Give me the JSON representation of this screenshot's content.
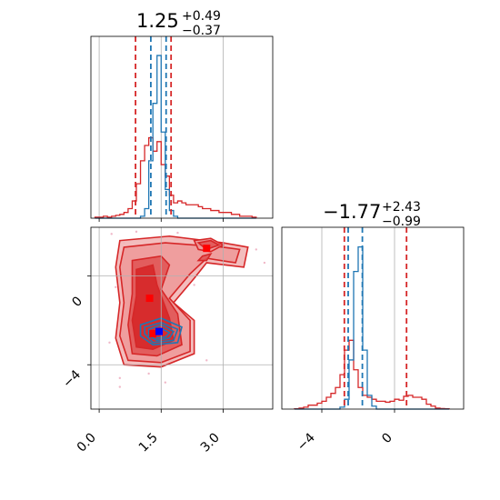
{
  "chart_data": {
    "type": "corner",
    "colors": {
      "red": "#d62728",
      "blue": "#1f77b4",
      "red_fill": "#ee9a9a",
      "grid": "#b0b0b0"
    },
    "panels": [
      {
        "id": "hist-param1",
        "type": "histogram",
        "title": {
          "main": "1.25",
          "sup": "+0.49",
          "sub": "−0.37"
        },
        "xlim": [
          -0.2,
          4.2
        ],
        "grid_x": [
          0.0,
          1.5,
          3.0
        ],
        "bin_edges": [
          -0.1,
          0.0,
          0.1,
          0.2,
          0.3,
          0.4,
          0.5,
          0.6,
          0.7,
          0.8,
          0.9,
          1.0,
          1.1,
          1.2,
          1.3,
          1.4,
          1.5,
          1.6,
          1.7,
          1.8,
          1.9,
          2.0,
          2.1,
          2.2,
          2.3,
          2.4,
          2.5,
          2.6,
          2.7,
          2.8,
          2.9,
          3.0,
          3.1,
          3.2,
          3.3,
          3.4,
          3.5,
          3.6,
          3.7,
          3.8
        ],
        "series": [
          {
            "name": "",
            "color": "#d62728",
            "values": [
              0.5,
              0.5,
              1,
              0.5,
              1,
              1.5,
              2,
              3,
              5,
              9,
              18,
              30,
              38,
              42,
              35,
              40,
              28,
              22,
              12,
              8,
              9,
              8,
              7,
              7,
              7,
              6,
              5,
              5,
              4,
              4,
              3,
              3,
              3,
              2,
              2,
              1,
              1,
              1,
              0.5
            ]
          },
          {
            "name": "",
            "color": "#1f77b4",
            "values": [
              0,
              0,
              0,
              0,
              0,
              0,
              0,
              0,
              0,
              0,
              0,
              1,
              5,
              30,
              60,
              85,
              45,
              15,
              4,
              1,
              0,
              0,
              0,
              0,
              0,
              0,
              0,
              0,
              0,
              0,
              0,
              0,
              0,
              0,
              0,
              0,
              0,
              0,
              0
            ]
          }
        ],
        "vlines": [
          {
            "x": 0.88,
            "color": "#d62728"
          },
          {
            "x": 1.25,
            "color": "#1f77b4"
          },
          {
            "x": 1.62,
            "color": "#1f77b4"
          },
          {
            "x": 1.74,
            "color": "#d62728"
          }
        ],
        "ymax": 95
      },
      {
        "id": "hist-param2",
        "type": "histogram",
        "title": {
          "main": "−1.77",
          "sup": "+2.43",
          "sub": "−0.99"
        },
        "xlim": [
          -6.2,
          3.8
        ],
        "grid_x": [
          -4,
          0
        ],
        "bin_edges": [
          -5.5,
          -5.25,
          -5.0,
          -4.75,
          -4.5,
          -4.25,
          -4.0,
          -3.75,
          -3.5,
          -3.25,
          -3.0,
          -2.75,
          -2.5,
          -2.25,
          -2.0,
          -1.75,
          -1.5,
          -1.25,
          -1.0,
          -0.75,
          -0.5,
          -0.25,
          0.0,
          0.25,
          0.5,
          0.75,
          1.0,
          1.25,
          1.5,
          1.75,
          2.0,
          2.25,
          2.5,
          2.75,
          3.0
        ],
        "series": [
          {
            "name": "",
            "color": "#d62728",
            "values": [
              0.3,
              1,
              2,
              4,
              4,
              6,
              8,
              12,
              16,
              22,
              35,
              60,
              70,
              40,
              22,
              14,
              12,
              10,
              8,
              8,
              7,
              8,
              10,
              9,
              13,
              14,
              12,
              12,
              10,
              5,
              3,
              1,
              0.5,
              0.3
            ]
          },
          {
            "name": "",
            "color": "#1f77b4",
            "values": [
              0,
              0,
              0,
              0,
              0,
              0,
              0,
              0,
              0,
              0,
              2,
              10,
              50,
              140,
              165,
              60,
              14,
              3,
              0,
              0,
              0,
              0,
              0,
              0,
              0,
              0,
              0,
              0,
              0,
              0,
              0,
              0,
              0,
              0
            ]
          }
        ],
        "vlines": [
          {
            "x": -2.76,
            "color": "#d62728"
          },
          {
            "x": -2.55,
            "color": "#1f77b4"
          },
          {
            "x": -1.77,
            "color": "#1f77b4"
          },
          {
            "x": 0.66,
            "color": "#d62728"
          }
        ],
        "ymax": 185
      },
      {
        "id": "joint-2d",
        "type": "contour",
        "xlim": [
          -0.2,
          4.2
        ],
        "ylim": [
          -6,
          2.2
        ],
        "grid_x": [
          0.0,
          1.5,
          3.0
        ],
        "grid_y": [
          0,
          -4
        ],
        "xticks": [
          0.0,
          1.5,
          3.0
        ],
        "xtick_labels": [
          "0.0",
          "1.5",
          "3.0"
        ],
        "yticks": [
          0,
          -4
        ],
        "ytick_labels": [
          "0",
          "−4"
        ],
        "red_contours": [
          [
            [
              0.5,
              1.6
            ],
            [
              1.7,
              1.8
            ],
            [
              3.0,
              1.5
            ],
            [
              3.6,
              1.3
            ],
            [
              3.5,
              0.4
            ],
            [
              2.6,
              0.6
            ],
            [
              2.3,
              -0.1
            ],
            [
              1.8,
              -1.2
            ],
            [
              2.3,
              -2.0
            ],
            [
              2.3,
              -3.5
            ],
            [
              1.5,
              -4.1
            ],
            [
              0.6,
              -4.0
            ],
            [
              0.4,
              -2.8
            ],
            [
              0.5,
              -1.2
            ],
            [
              0.4,
              0.4
            ]
          ],
          [
            [
              0.6,
              1.3
            ],
            [
              1.6,
              1.5
            ],
            [
              3.0,
              1.3
            ],
            [
              3.4,
              1.2
            ],
            [
              3.3,
              0.6
            ],
            [
              2.6,
              0.8
            ],
            [
              2.2,
              0.1
            ],
            [
              1.7,
              -1.0
            ],
            [
              2.2,
              -2.0
            ],
            [
              2.2,
              -3.4
            ],
            [
              1.5,
              -3.9
            ],
            [
              0.7,
              -3.8
            ],
            [
              0.5,
              -2.7
            ],
            [
              0.6,
              -1.2
            ],
            [
              0.5,
              0.4
            ]
          ],
          [
            [
              0.8,
              0.7
            ],
            [
              1.5,
              0.9
            ],
            [
              1.7,
              0.5
            ],
            [
              1.5,
              -0.6
            ],
            [
              1.9,
              -1.7
            ],
            [
              2.0,
              -3.1
            ],
            [
              1.4,
              -3.6
            ],
            [
              0.8,
              -3.5
            ],
            [
              0.7,
              -2.2
            ],
            [
              0.8,
              -0.8
            ]
          ],
          [
            [
              0.9,
              0.3
            ],
            [
              1.3,
              0.5
            ],
            [
              1.4,
              -0.4
            ],
            [
              1.7,
              -1.9
            ],
            [
              1.8,
              -2.9
            ],
            [
              1.3,
              -3.3
            ],
            [
              0.9,
              -3.2
            ],
            [
              0.8,
              -2.0
            ],
            [
              0.9,
              -0.9
            ]
          ],
          [
            [
              2.3,
              1.6
            ],
            [
              2.7,
              1.7
            ],
            [
              3.0,
              1.4
            ],
            [
              2.7,
              1.1
            ],
            [
              2.4,
              1.2
            ]
          ],
          [
            [
              2.4,
              1.5
            ],
            [
              2.7,
              1.6
            ],
            [
              2.9,
              1.4
            ],
            [
              2.6,
              1.2
            ]
          ],
          [
            [
              2.5,
              0.9
            ],
            [
              2.7,
              1.0
            ],
            [
              2.6,
              0.7
            ],
            [
              2.4,
              0.7
            ]
          ]
        ],
        "blue_contours": [
          [
            [
              1.0,
              -2.2
            ],
            [
              1.5,
              -1.9
            ],
            [
              2.0,
              -2.3
            ],
            [
              1.9,
              -3.0
            ],
            [
              1.3,
              -3.1
            ],
            [
              1.0,
              -2.7
            ]
          ],
          [
            [
              1.1,
              -2.3
            ],
            [
              1.5,
              -2.1
            ],
            [
              1.9,
              -2.4
            ],
            [
              1.8,
              -2.9
            ],
            [
              1.3,
              -3.0
            ],
            [
              1.1,
              -2.6
            ]
          ],
          [
            [
              1.2,
              -2.4
            ],
            [
              1.5,
              -2.2
            ],
            [
              1.8,
              -2.5
            ],
            [
              1.7,
              -2.8
            ],
            [
              1.4,
              -2.9
            ],
            [
              1.2,
              -2.7
            ]
          ],
          [
            [
              1.3,
              -2.5
            ],
            [
              1.5,
              -2.35
            ],
            [
              1.7,
              -2.55
            ],
            [
              1.6,
              -2.75
            ],
            [
              1.4,
              -2.8
            ]
          ]
        ],
        "markers": [
          {
            "x": 2.6,
            "y": 1.25,
            "color": "#ff0000"
          },
          {
            "x": 1.22,
            "y": -1.0,
            "color": "#ff0000"
          },
          {
            "x": 1.3,
            "y": -2.6,
            "color": "#ff0000"
          },
          {
            "x": 1.45,
            "y": -2.5,
            "color": "#0000ff"
          }
        ],
        "scatter": [
          [
            0.6,
            1.5
          ],
          [
            0.3,
            1.9
          ],
          [
            0.9,
            2.0
          ],
          [
            0.4,
            -0.5
          ],
          [
            2.3,
            -0.4
          ],
          [
            0.5,
            -4.6
          ],
          [
            1.2,
            -4.4
          ],
          [
            1.6,
            -4.8
          ],
          [
            3.8,
            1.2
          ],
          [
            4.0,
            0.6
          ],
          [
            1.9,
            1.95
          ],
          [
            0.25,
            -3.0
          ],
          [
            2.6,
            -3.8
          ],
          [
            0.5,
            -5.0
          ]
        ]
      },
      {
        "id": "hist-param2-axis",
        "type": "axis",
        "xticks": [
          -4,
          0
        ],
        "xtick_labels": [
          "−4",
          "0"
        ]
      }
    ]
  }
}
